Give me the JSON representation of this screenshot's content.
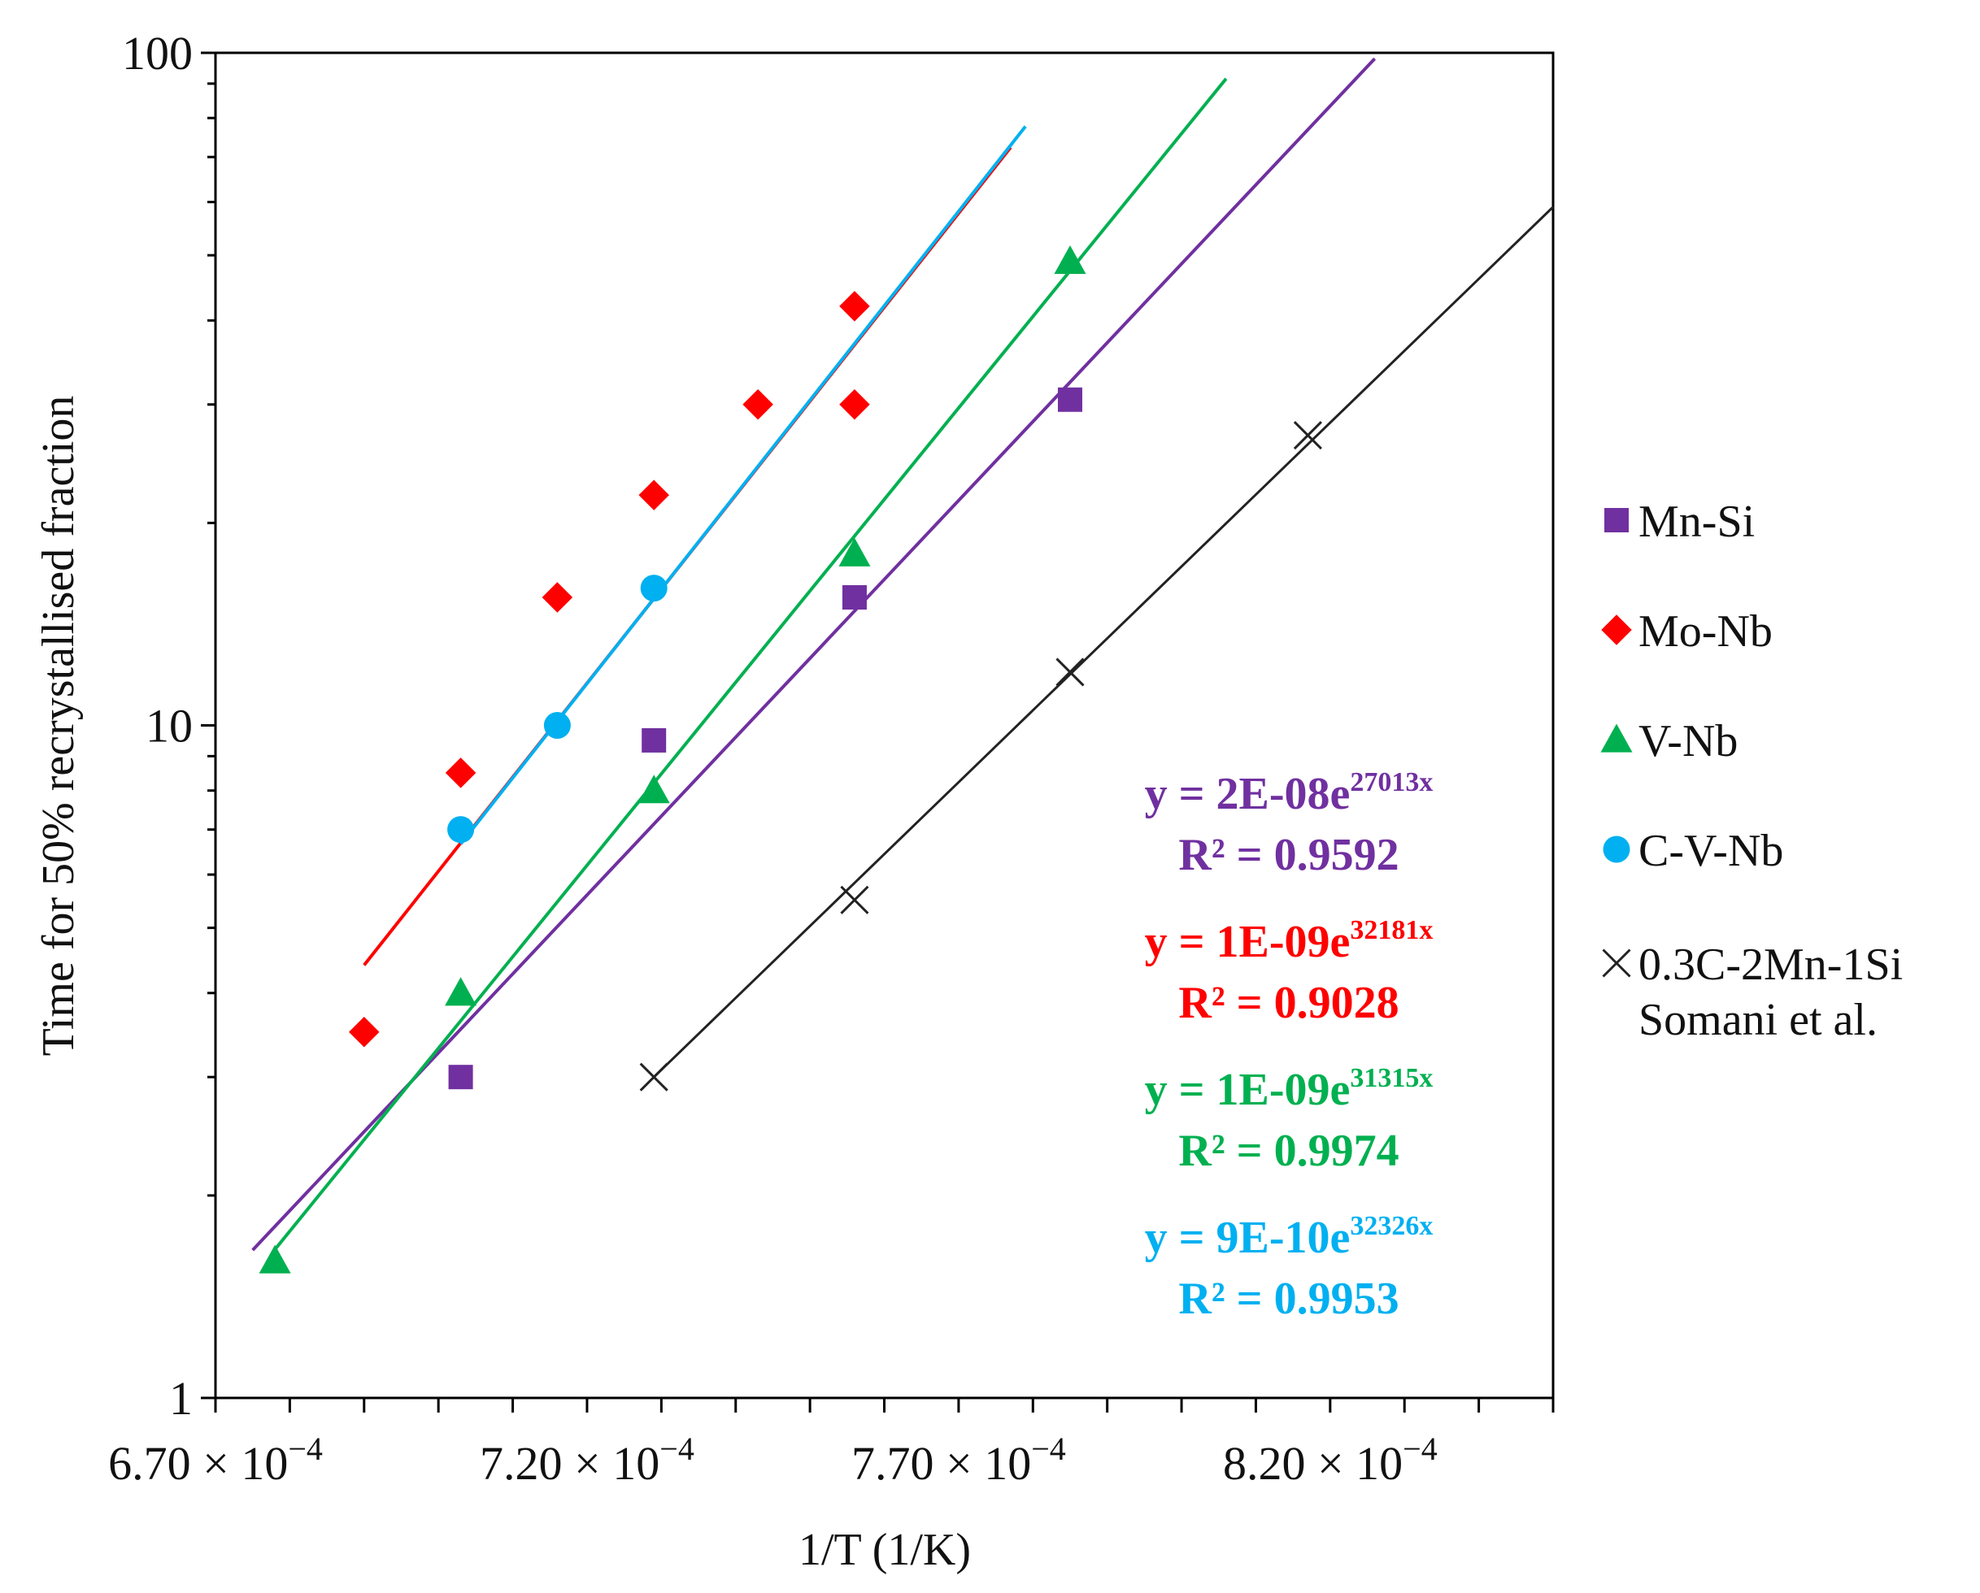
{
  "chart_data": {
    "type": "scatter",
    "title": "",
    "xlabel": "1/T (1/K)",
    "ylabel": "Time for 50% recrystallised fraction",
    "yscale": "log",
    "xlim": [
      0.00067,
      0.00085
    ],
    "ylim": [
      1,
      100
    ],
    "x_tick_values": [
      0.00067,
      0.00072,
      0.00077,
      0.00082
    ],
    "x_tick_labels": [
      {
        "mantissa": "6.70",
        "exp": "−4"
      },
      {
        "mantissa": "7.20",
        "exp": "−4"
      },
      {
        "mantissa": "7.70",
        "exp": "−4"
      },
      {
        "mantissa": "8.20",
        "exp": "−4"
      }
    ],
    "x_tick_times": "×",
    "x_tick_base": "10",
    "y_ticks": [
      {
        "value": 1,
        "label": "1"
      },
      {
        "value": 10,
        "label": "10"
      },
      {
        "value": 100,
        "label": "100"
      }
    ],
    "series": [
      {
        "name": "Mn-Si",
        "color": "#7030a0",
        "marker": "square",
        "points": [
          [
            0.000703,
            3.0
          ],
          [
            0.000729,
            9.5
          ],
          [
            0.000756,
            15.5
          ],
          [
            0.000785,
            30.5
          ]
        ],
        "trend": {
          "a": 2e-08,
          "b": 27013,
          "x_start": 0.000675,
          "x_end": 0.000826
        },
        "equation": {
          "prefix": "y = 2E-08e",
          "exponent": "27013x",
          "r2": "R² = 0.9592"
        }
      },
      {
        "name": "Mo-Nb",
        "color": "#ff0000",
        "marker": "diamond",
        "points": [
          [
            0.00069,
            3.5
          ],
          [
            0.000703,
            8.5
          ],
          [
            0.000716,
            15.5
          ],
          [
            0.000729,
            22.0
          ],
          [
            0.000743,
            30.0
          ],
          [
            0.000756,
            42.0
          ],
          [
            0.000756,
            30.0
          ]
        ],
        "trend": {
          "a": 1e-09,
          "b": 32181,
          "x_start": 0.00069,
          "x_end": 0.000777
        },
        "equation": {
          "prefix": "y = 1E-09e",
          "exponent": "32181x",
          "r2": "R² = 0.9028"
        }
      },
      {
        "name": "V-Nb",
        "color": "#00b050",
        "marker": "triangle",
        "points": [
          [
            0.000678,
            1.6
          ],
          [
            0.000703,
            4.0
          ],
          [
            0.000729,
            8.0
          ],
          [
            0.000756,
            18.0
          ],
          [
            0.000785,
            49.0
          ]
        ],
        "trend": {
          "a": 1e-09,
          "b": 31315,
          "x_start": 0.000678,
          "x_end": 0.000806
        },
        "equation": {
          "prefix": "y = 1E-09e",
          "exponent": "31315x",
          "r2": "R² = 0.9974"
        }
      },
      {
        "name": "C-V-Nb",
        "color": "#00b0f0",
        "marker": "circle",
        "points": [
          [
            0.000703,
            7.0
          ],
          [
            0.000716,
            10.0
          ],
          [
            0.000729,
            16.0
          ]
        ],
        "trend": {
          "a": 9e-10,
          "b": 32326,
          "x_start": 0.000703,
          "x_end": 0.000779
        },
        "equation": {
          "prefix": "y = 9E-10e",
          "exponent": "32326x",
          "r2": "R² = 0.9953"
        }
      },
      {
        "name": "0.3C-2Mn-1Si",
        "name_line2": "Somani et al.",
        "color": "#222222",
        "marker": "x",
        "points": [
          [
            0.000729,
            3.0
          ],
          [
            0.000756,
            5.5
          ],
          [
            0.000785,
            12.0
          ],
          [
            0.000817,
            27.0
          ]
        ],
        "trend": {
          "x_start": 0.000729,
          "y_start": 3.0,
          "x_end": 0.00085,
          "y_end": 59.0
        },
        "equation": null
      }
    ]
  }
}
